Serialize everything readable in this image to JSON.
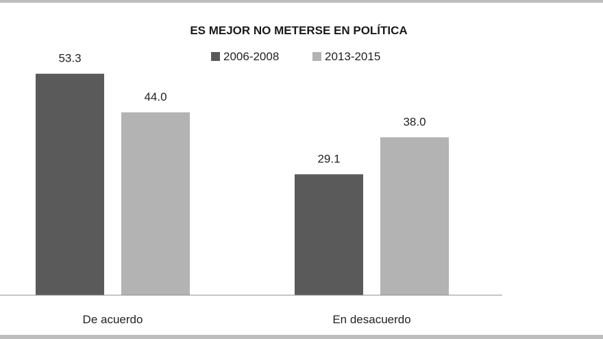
{
  "chart_data": {
    "type": "bar",
    "title": "ES MEJOR NO METERSE EN POLÍTICA",
    "categories": [
      "De acuerdo",
      "En desacuerdo"
    ],
    "series": [
      {
        "name": "2006-2008",
        "values": [
          53.3,
          29.1
        ],
        "labels": [
          "53.3",
          "29.1"
        ],
        "color": "#5a5a5a"
      },
      {
        "name": "2013-2015",
        "values": [
          44.0,
          38.0
        ],
        "labels": [
          "44.0",
          "38.0"
        ],
        "color": "#b3b3b3"
      }
    ],
    "ylim": [
      0,
      60
    ],
    "legend_position": "top",
    "grid": false,
    "xlabel": "",
    "ylabel": ""
  }
}
